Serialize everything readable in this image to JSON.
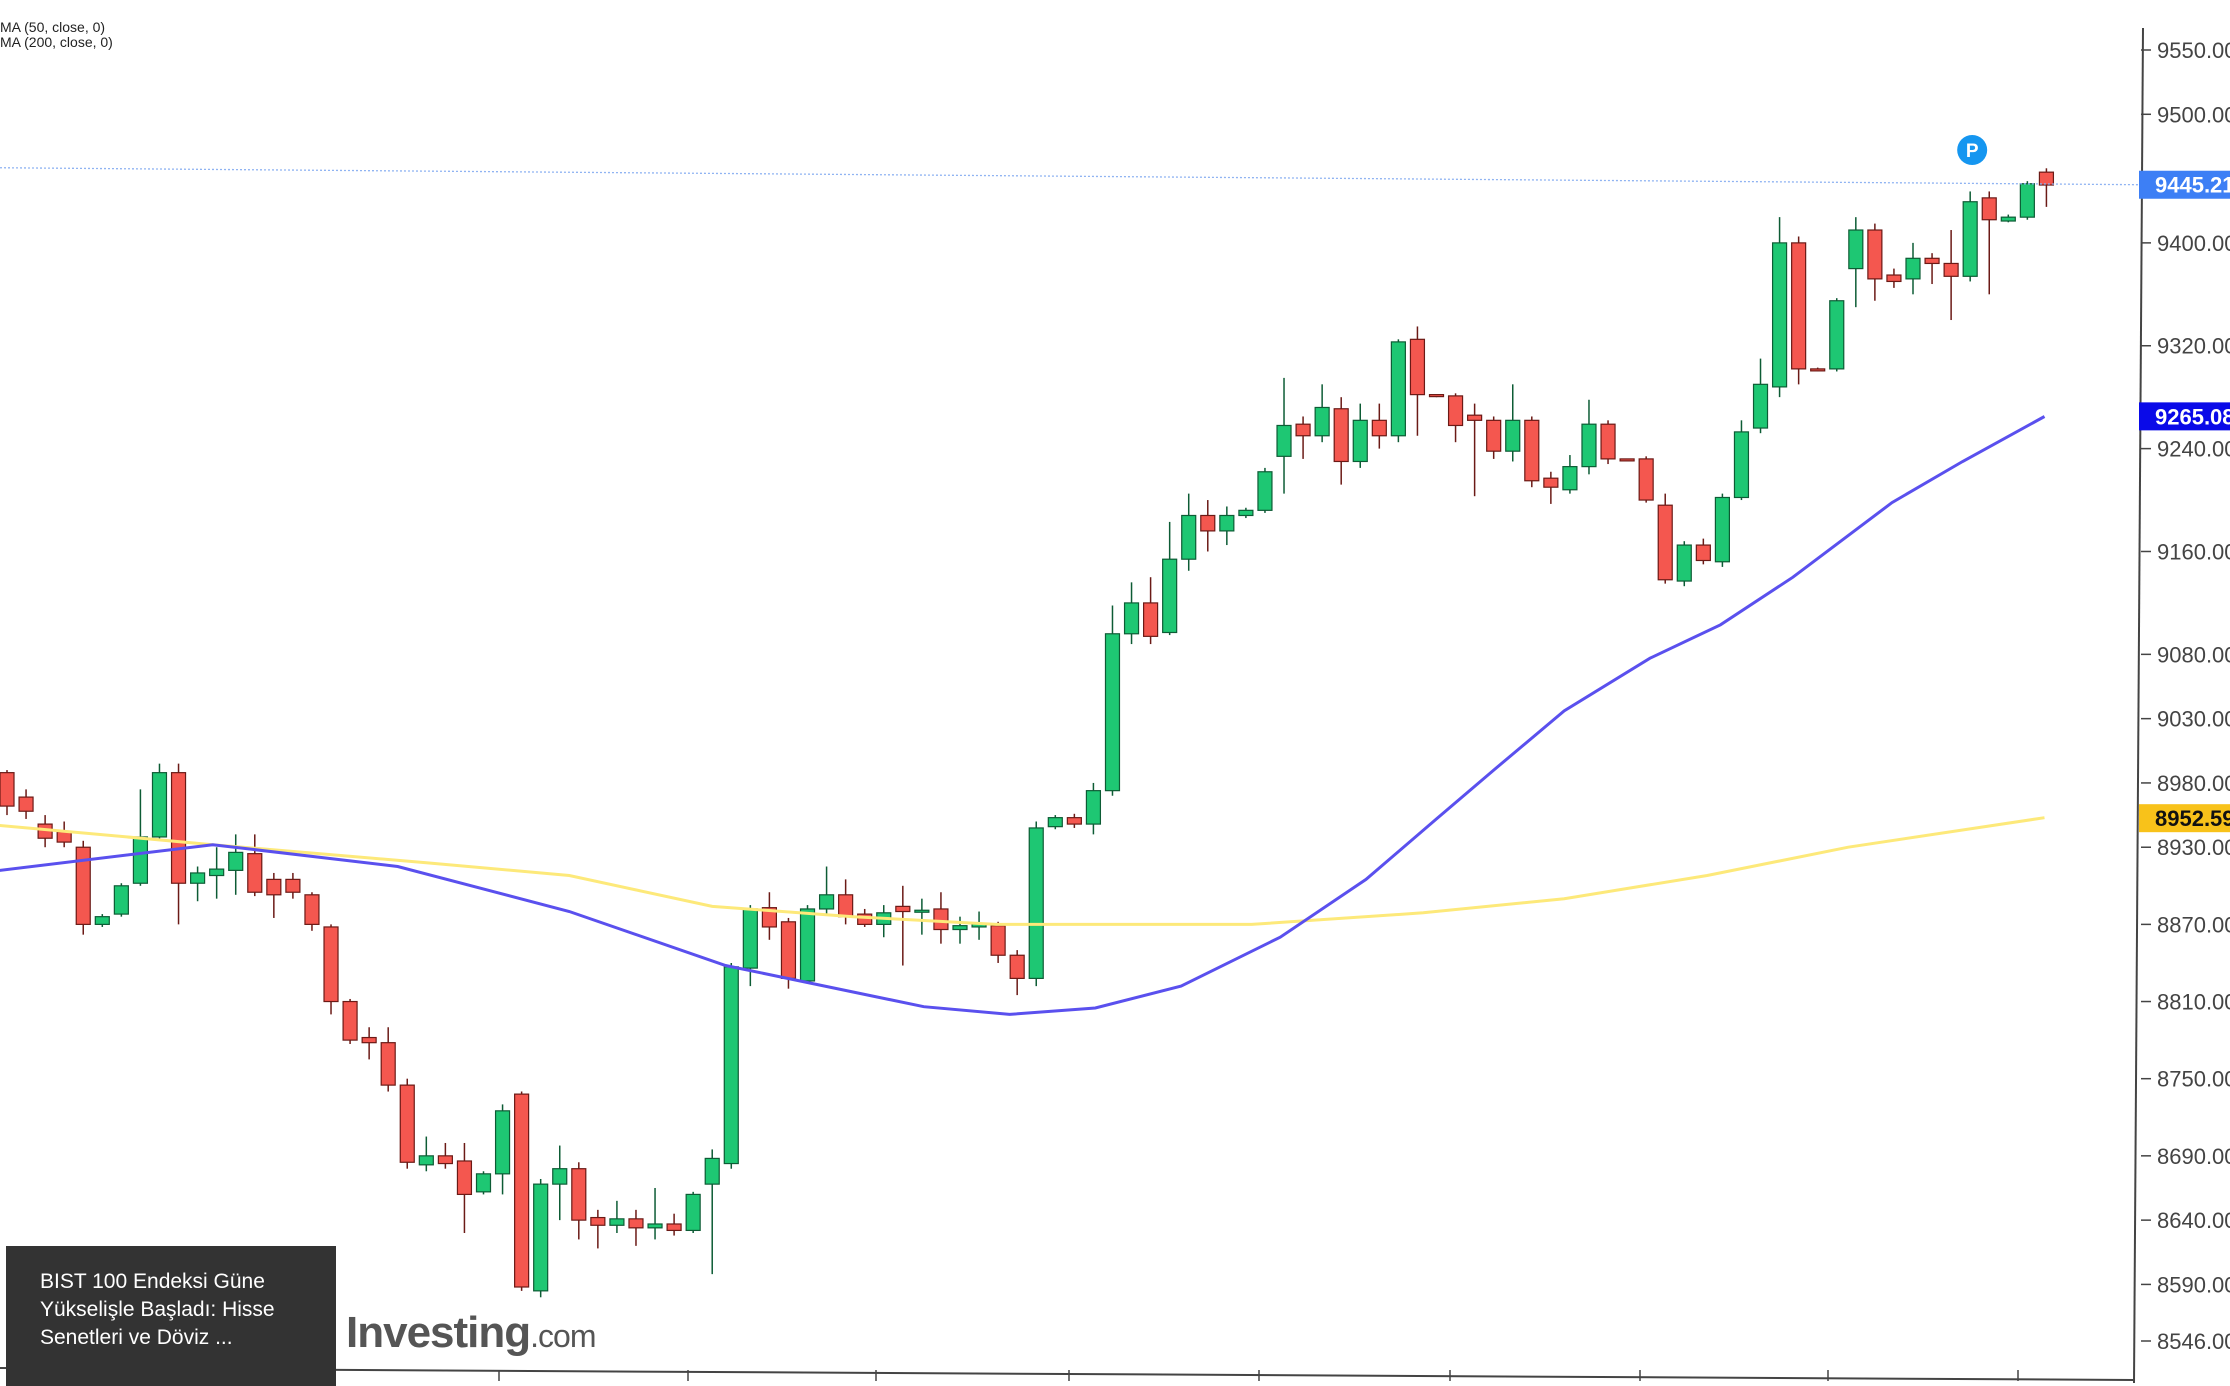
{
  "legend": [
    "MA (50, close, 0)",
    "MA (200, close, 0)"
  ],
  "caption": {
    "lines": [
      "BIST 100 Endeksi Güne",
      "Yükselişle Başladı: Hisse",
      "Senetleri ve Döviz ..."
    ],
    "watermark": "Investing",
    "watermark_suffix": ".com"
  },
  "colors": {
    "up": "#1ec773",
    "down": "#f4574f",
    "ma50": "#5a50ee",
    "ma200": "#fde97a",
    "last_price": "#3d7ff5",
    "ma50_badge": "#0a0ae8",
    "ma200_badge": "#f8c21a"
  },
  "chart_data": {
    "type": "candlestick",
    "ylim": [
      8546,
      9550
    ],
    "y_ticks": [
      9550,
      9500,
      9400,
      9320,
      9240,
      9160,
      9080,
      9030,
      8980,
      8930,
      8870,
      8810,
      8750,
      8690,
      8640,
      8590,
      8546
    ],
    "y_tick_labels": [
      "9550.00",
      "9500.00",
      "9400.00",
      "9320.00",
      "9240.00",
      "9160.00",
      "9080.00",
      "9030.00",
      "8980.00",
      "8930.00",
      "8870.00",
      "8810.00",
      "8750.00",
      "8690.00",
      "8640.00",
      "8590.00",
      "8546.00"
    ],
    "badges": [
      {
        "label": "9445.21",
        "value": 9445.21,
        "color": "#3d7ff5",
        "text_color": "#ffffff"
      },
      {
        "label": "9265.08",
        "value": 9265.08,
        "color": "#0a0ae8",
        "text_color": "#ffffff"
      },
      {
        "label": "8952.59",
        "value": 8952.59,
        "color": "#f8c21a",
        "text_color": "#111111"
      }
    ],
    "marker": {
      "label": "P",
      "index": 103
    },
    "ohlc": [
      [
        8988,
        8990,
        8955,
        8962
      ],
      [
        8969,
        8975,
        8952,
        8958
      ],
      [
        8948,
        8955,
        8930,
        8937
      ],
      [
        8942,
        8950,
        8930,
        8934
      ],
      [
        8930,
        8935,
        8862,
        8870
      ],
      [
        8870,
        8878,
        8868,
        8876
      ],
      [
        8878,
        8902,
        8876,
        8900
      ],
      [
        8902,
        8975,
        8900,
        8938
      ],
      [
        8938,
        8995,
        8935,
        8988
      ],
      [
        8988,
        8995,
        8870,
        8902
      ],
      [
        8902,
        8915,
        8888,
        8910
      ],
      [
        8908,
        8930,
        8890,
        8913
      ],
      [
        8912,
        8940,
        8893,
        8926
      ],
      [
        8925,
        8940,
        8892,
        8895
      ],
      [
        8905,
        8910,
        8875,
        8893
      ],
      [
        8905,
        8910,
        8890,
        8895
      ],
      [
        8893,
        8895,
        8865,
        8870
      ],
      [
        8868,
        8870,
        8800,
        8810
      ],
      [
        8810,
        8812,
        8777,
        8780
      ],
      [
        8782,
        8790,
        8765,
        8778
      ],
      [
        8778,
        8790,
        8740,
        8745
      ],
      [
        8745,
        8750,
        8680,
        8685
      ],
      [
        8683,
        8705,
        8678,
        8690
      ],
      [
        8690,
        8700,
        8680,
        8684
      ],
      [
        8686,
        8700,
        8630,
        8660
      ],
      [
        8662,
        8678,
        8660,
        8676
      ],
      [
        8676,
        8730,
        8660,
        8725
      ],
      [
        8738,
        8740,
        8585,
        8588
      ],
      [
        8585,
        8672,
        8580,
        8668
      ],
      [
        8668,
        8698,
        8640,
        8680
      ],
      [
        8680,
        8685,
        8625,
        8640
      ],
      [
        8642,
        8648,
        8618,
        8636
      ],
      [
        8636,
        8655,
        8630,
        8641
      ],
      [
        8641,
        8648,
        8620,
        8634
      ],
      [
        8634,
        8665,
        8625,
        8637
      ],
      [
        8637,
        8645,
        8628,
        8632
      ],
      [
        8632,
        8662,
        8630,
        8660
      ],
      [
        8668,
        8695,
        8598,
        8688
      ],
      [
        8684,
        8840,
        8680,
        8837
      ],
      [
        8836,
        8885,
        8822,
        8882
      ],
      [
        8883,
        8895,
        8858,
        8868
      ],
      [
        8872,
        8875,
        8820,
        8828
      ],
      [
        8826,
        8885,
        8825,
        8882
      ],
      [
        8882,
        8915,
        8878,
        8893
      ],
      [
        8893,
        8905,
        8870,
        8876
      ],
      [
        8878,
        8882,
        8868,
        8870
      ],
      [
        8870,
        8885,
        8860,
        8879
      ],
      [
        8884,
        8900,
        8838,
        8880
      ],
      [
        8880,
        8890,
        8862,
        8881
      ],
      [
        8882,
        8895,
        8855,
        8866
      ],
      [
        8866,
        8876,
        8855,
        8869
      ],
      [
        8868,
        8880,
        8858,
        8871
      ],
      [
        8869,
        8872,
        8840,
        8846
      ],
      [
        8846,
        8850,
        8815,
        8828
      ],
      [
        8828,
        8950,
        8822,
        8945
      ],
      [
        8946,
        8955,
        8944,
        8953
      ],
      [
        8953,
        8956,
        8945,
        8948
      ],
      [
        8948,
        8980,
        8940,
        8974
      ],
      [
        8974,
        9118,
        8970,
        9096
      ],
      [
        9096,
        9136,
        9088,
        9120
      ],
      [
        9120,
        9140,
        9088,
        9094
      ],
      [
        9097,
        9183,
        9095,
        9154
      ],
      [
        9154,
        9205,
        9145,
        9188
      ],
      [
        9188,
        9200,
        9160,
        9176
      ],
      [
        9176,
        9195,
        9165,
        9188
      ],
      [
        9188,
        9194,
        9186,
        9192
      ],
      [
        9192,
        9225,
        9190,
        9222
      ],
      [
        9234,
        9295,
        9205,
        9258
      ],
      [
        9259,
        9265,
        9232,
        9250
      ],
      [
        9250,
        9290,
        9245,
        9272
      ],
      [
        9271,
        9280,
        9212,
        9230
      ],
      [
        9230,
        9275,
        9225,
        9262
      ],
      [
        9262,
        9275,
        9240,
        9250
      ],
      [
        9250,
        9325,
        9245,
        9323
      ],
      [
        9325,
        9335,
        9250,
        9282
      ],
      [
        9282,
        9282,
        9280,
        9281
      ],
      [
        9281,
        9283,
        9245,
        9258
      ],
      [
        9266,
        9275,
        9203,
        9262
      ],
      [
        9262,
        9265,
        9232,
        9238
      ],
      [
        9238,
        9290,
        9230,
        9262
      ],
      [
        9262,
        9265,
        9210,
        9215
      ],
      [
        9217,
        9222,
        9197,
        9210
      ],
      [
        9208,
        9235,
        9205,
        9226
      ],
      [
        9226,
        9278,
        9220,
        9259
      ],
      [
        9259,
        9262,
        9228,
        9232
      ],
      [
        9232,
        9232,
        9230,
        9231
      ],
      [
        9232,
        9234,
        9198,
        9200
      ],
      [
        9196,
        9205,
        9135,
        9138
      ],
      [
        9137,
        9168,
        9133,
        9165
      ],
      [
        9165,
        9170,
        9150,
        9153
      ],
      [
        9152,
        9205,
        9148,
        9202
      ],
      [
        9202,
        9262,
        9200,
        9253
      ],
      [
        9256,
        9310,
        9252,
        9290
      ],
      [
        9288,
        9420,
        9280,
        9400
      ],
      [
        9400,
        9405,
        9290,
        9302
      ],
      [
        9302,
        9303,
        9300,
        9301
      ],
      [
        9302,
        9357,
        9300,
        9355
      ],
      [
        9380,
        9420,
        9350,
        9410
      ],
      [
        9410,
        9415,
        9355,
        9372
      ],
      [
        9375,
        9380,
        9365,
        9370
      ],
      [
        9372,
        9400,
        9360,
        9388
      ],
      [
        9388,
        9392,
        9368,
        9384
      ],
      [
        9384,
        9410,
        9340,
        9374
      ],
      [
        9374,
        9440,
        9370,
        9432
      ],
      [
        9435,
        9440,
        9360,
        9418
      ],
      [
        9417,
        9422,
        9416,
        9420
      ],
      [
        9420,
        9448,
        9418,
        9446
      ],
      [
        9455,
        9458,
        9428,
        9445
      ]
    ],
    "ma50": [
      [
        -0.4,
        8912
      ],
      [
        10.8,
        8932
      ],
      [
        20.5,
        8915
      ],
      [
        29.5,
        8880
      ],
      [
        37.7,
        8838
      ],
      [
        48.1,
        8806
      ],
      [
        52.6,
        8800
      ],
      [
        57.1,
        8805
      ],
      [
        61.6,
        8822
      ],
      [
        66.8,
        8860
      ],
      [
        71.3,
        8905
      ],
      [
        75,
        8952
      ],
      [
        78,
        8990
      ],
      [
        81.7,
        9036
      ],
      [
        86.2,
        9077
      ],
      [
        89.9,
        9103
      ],
      [
        93.7,
        9140
      ],
      [
        98.9,
        9198
      ],
      [
        102.6,
        9230
      ],
      [
        106.9,
        9265
      ]
    ],
    "ma200": [
      [
        -0.4,
        8947
      ],
      [
        10.8,
        8932
      ],
      [
        22,
        8918
      ],
      [
        29.5,
        8908
      ],
      [
        37,
        8884
      ],
      [
        44.4,
        8876
      ],
      [
        51.9,
        8870
      ],
      [
        65.3,
        8870
      ],
      [
        74.3,
        8879
      ],
      [
        81.7,
        8890
      ],
      [
        89.2,
        8908
      ],
      [
        96.6,
        8930
      ],
      [
        106.9,
        8953
      ]
    ]
  }
}
